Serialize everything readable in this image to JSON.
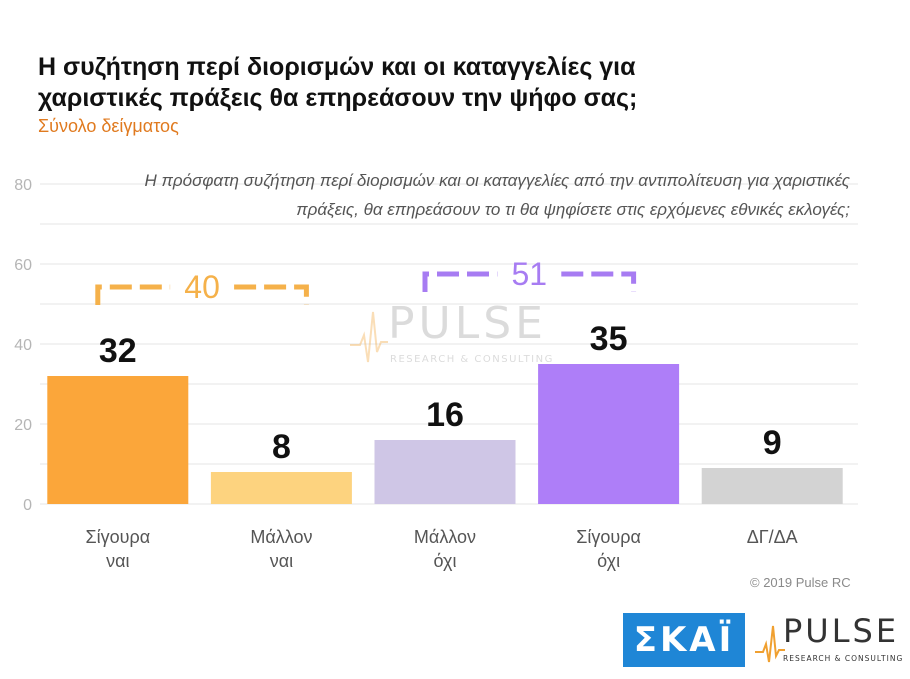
{
  "title": "Η συζήτηση περί διορισμών και οι καταγγελίες για χαριστικές πράξεις θα επηρεάσουν την ψήφο σας;",
  "subtitle": "Σύνολο δείγματος",
  "question": "Η πρόσφατη συζήτηση περί διορισμών και οι καταγγελίες από την αντιπολίτευση για χαριστικές πράξεις, θα επηρεάσουν το τι θα ψηφίσετε στις ερχόμενες εθνικές εκλογές;",
  "copyright": "© 2019 Pulse RC",
  "logos": {
    "skai": "ΣΚΑΪ",
    "pulse": "PULSE",
    "pulse_tagline": "RESEARCH & CONSULTING"
  },
  "watermark": {
    "text": "PULSE",
    "tagline": "RESEARCH & CONSULTING"
  },
  "colors": {
    "title": "#111111",
    "subtitle": "#e07a1f",
    "grid": "#e6e6e6",
    "axis_text": "#b5b5b5",
    "bracket_yes": "#f5b14a",
    "bracket_no": "#a77cf2"
  },
  "chart_data": {
    "type": "bar",
    "categories": [
      [
        "Σίγουρα",
        "ναι"
      ],
      [
        "Μάλλον",
        "ναι"
      ],
      [
        "Μάλλον",
        "όχι"
      ],
      [
        "Σίγουρα",
        "όχι"
      ],
      [
        "ΔΓ/ΔΑ"
      ]
    ],
    "values": [
      32,
      8,
      16,
      35,
      9
    ],
    "colors": [
      "#fba63a",
      "#fdd37f",
      "#cfc6e6",
      "#ae7ef8",
      "#d3d3d3"
    ],
    "ylim": [
      0,
      80
    ],
    "yticks": [
      0,
      20,
      40,
      60,
      80
    ],
    "grid": true,
    "brackets": [
      {
        "label": "40",
        "from": 0,
        "to": 1,
        "color": "#f5b14a"
      },
      {
        "label": "51",
        "from": 2,
        "to": 3,
        "color": "#a77cf2"
      }
    ]
  }
}
